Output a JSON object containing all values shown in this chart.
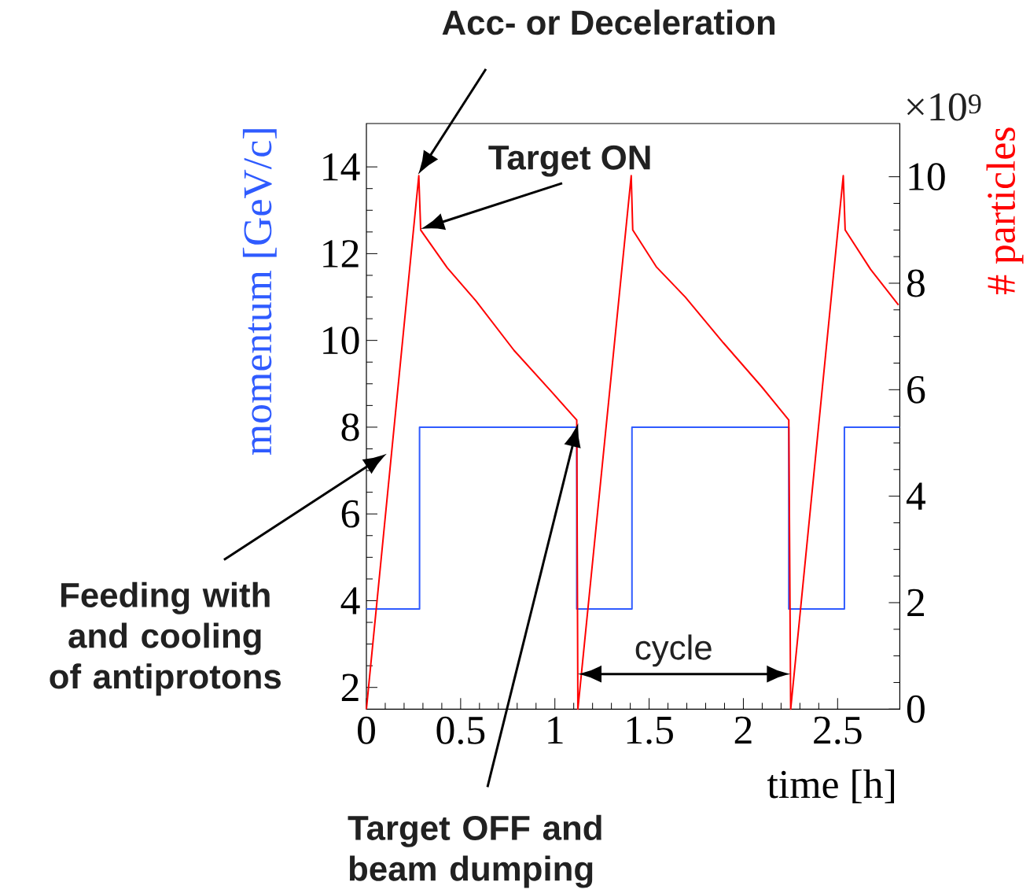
{
  "chart_data": {
    "type": "line",
    "xlabel": "time [h]",
    "ylabel": "momentum [GeV/c]",
    "y2label": "# particles",
    "xlim": [
      0,
      2.83
    ],
    "xticks": [
      0,
      0.5,
      1,
      1.5,
      2,
      2.5
    ],
    "ylim": [
      1.5,
      15
    ],
    "yticks": [
      2,
      4,
      6,
      8,
      10,
      12,
      14
    ],
    "y2lim": [
      0,
      11
    ],
    "y2ticks": [
      0,
      2,
      4,
      6,
      8,
      10
    ],
    "series": [
      {
        "type": "step",
        "color": "#2f5bff",
        "x": [
          0,
          0.282,
          1.116,
          1.409,
          2.241,
          2.536,
          2.83
        ],
        "values": [
          3.81,
          8,
          3.81,
          8,
          3.81,
          8,
          8
        ]
      },
      {
        "axis": "y2",
        "color": "#ff0000",
        "x": [
          0,
          0.278,
          0.288,
          0.429,
          0.581,
          0.783,
          0.985,
          1.116,
          1.122,
          1.405,
          1.413,
          1.54,
          1.692,
          1.894,
          2.096,
          2.241,
          2.251,
          2.53,
          2.54,
          2.675,
          2.823
        ],
        "values": [
          0,
          10.02,
          9.0,
          8.29,
          7.67,
          6.74,
          5.95,
          5.43,
          0,
          10.02,
          9.0,
          8.3,
          7.74,
          6.88,
          6.06,
          5.43,
          0,
          10.02,
          9.0,
          8.26,
          7.59
        ]
      }
    ],
    "annotations": [
      "×10$^{9}$",
      "Acc- or Deceleration",
      "Target ON",
      "Feeding with and cooling of antiprotons",
      "Target OFF and beam dumping",
      "cycle"
    ]
  }
}
